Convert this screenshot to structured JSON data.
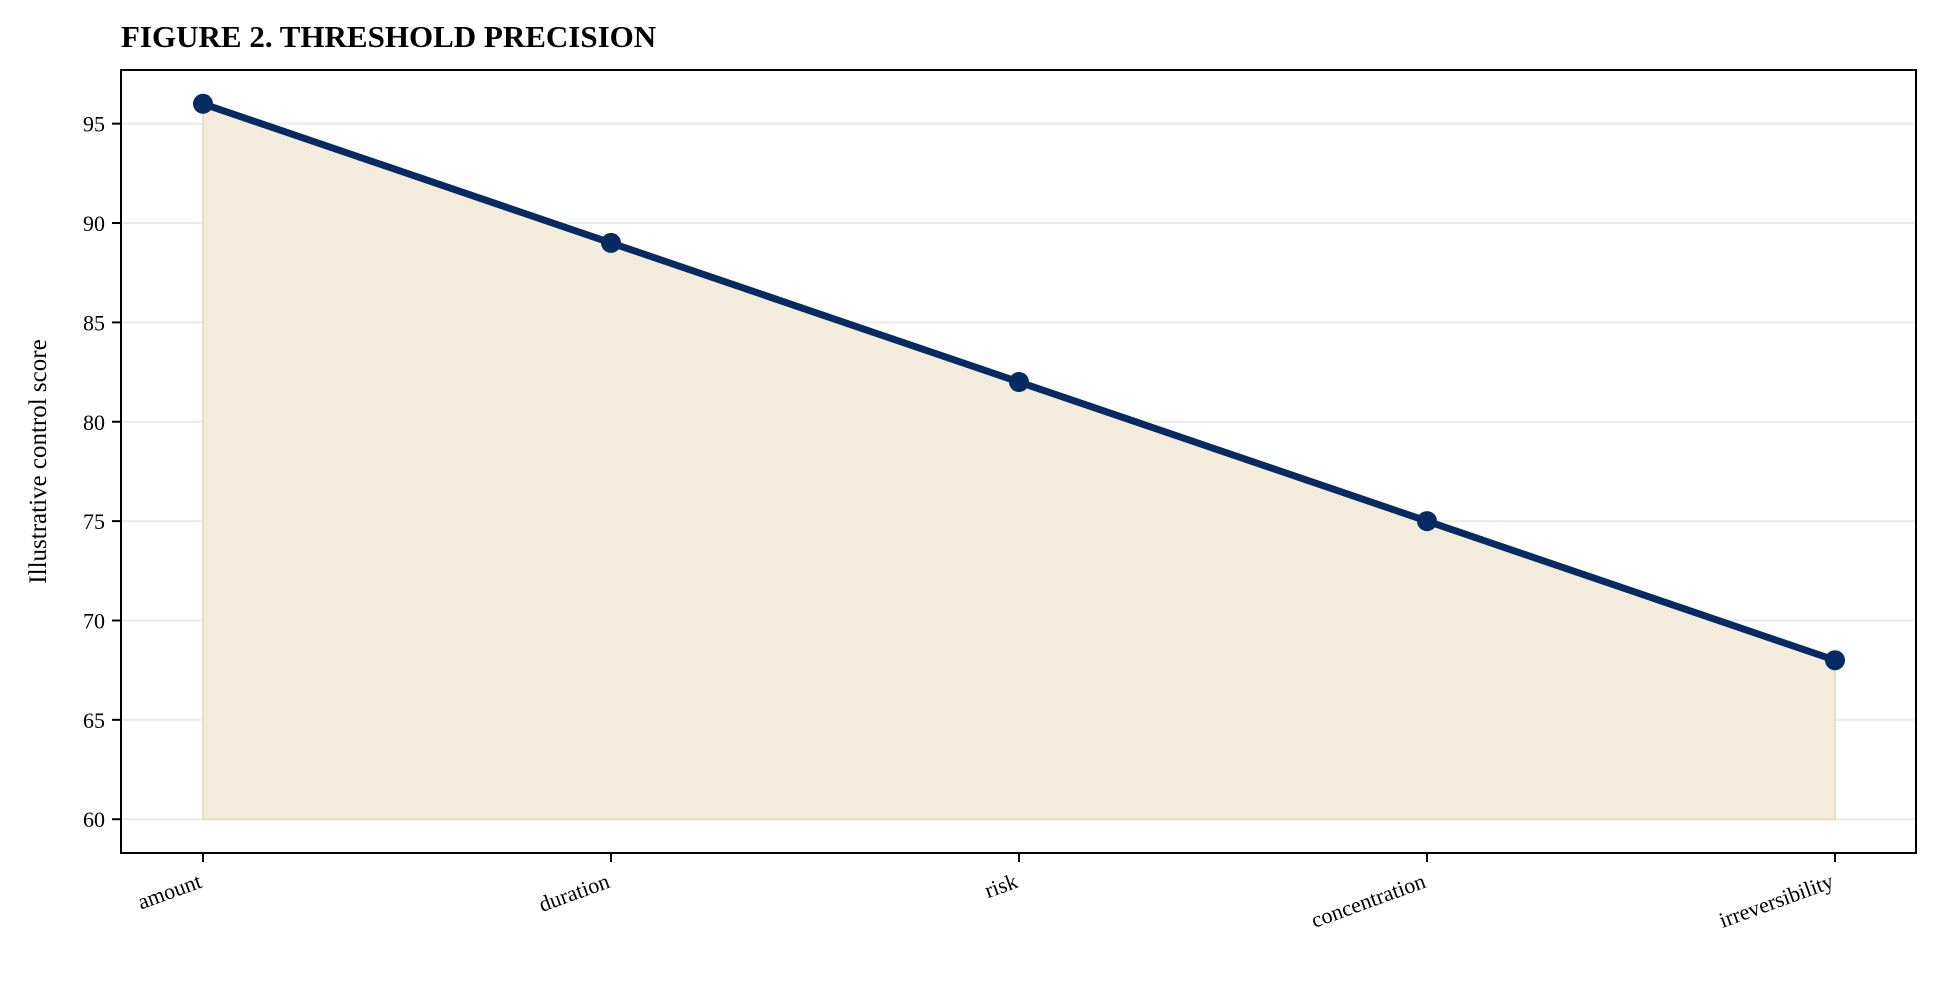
{
  "chart_data": {
    "type": "area",
    "title": "FIGURE 2. THRESHOLD PRECISION",
    "xlabel": "",
    "ylabel": "Illustrative control score",
    "categories": [
      "amount",
      "duration",
      "risk",
      "concentration",
      "irreversibility"
    ],
    "series": [
      {
        "values": [
          96,
          89,
          82,
          75,
          68
        ]
      }
    ],
    "ylim": [
      58.3,
      97.7
    ],
    "yticks": [
      60,
      65,
      70,
      75,
      80,
      85,
      90,
      95
    ],
    "fill_baseline": 60,
    "grid": {
      "y": true,
      "x": false
    },
    "colors": {
      "line": "#062b63",
      "fill": "#f3ecdc",
      "grid": "#ebebeb"
    }
  }
}
